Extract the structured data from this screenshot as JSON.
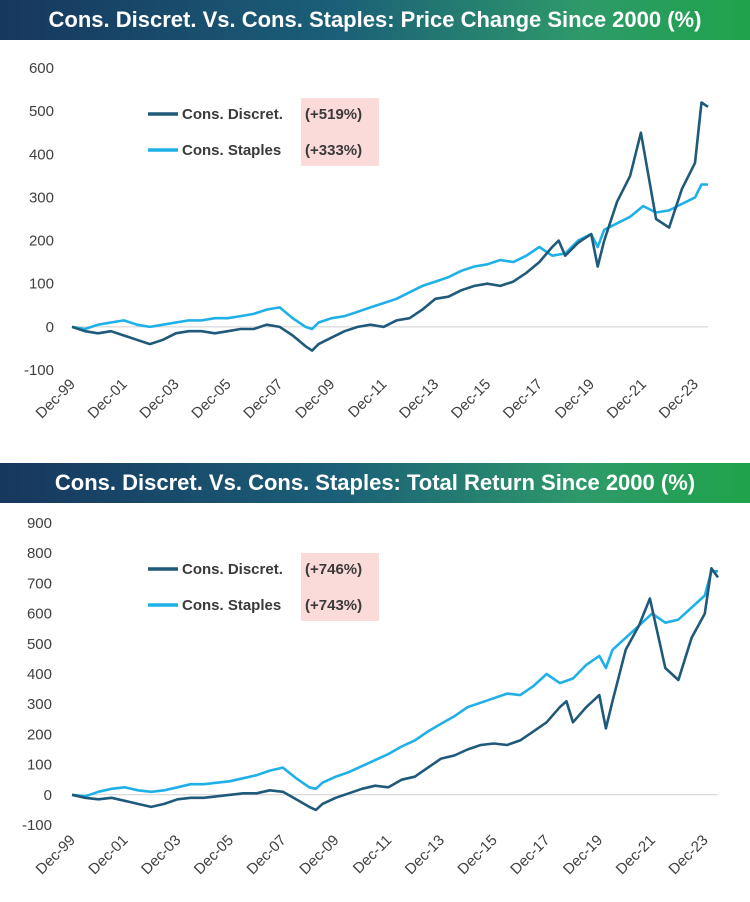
{
  "colors": {
    "discret": "#1f5a7a",
    "staples": "#1fb0e8",
    "highlight": "#fbdada",
    "axis": "#d0d0d0"
  },
  "chart_data": [
    {
      "type": "line",
      "title": "Cons. Discret. Vs. Cons. Staples: Price Change Since 2000 (%)",
      "xlabel": "",
      "ylabel": "",
      "ylim": [
        -100,
        600
      ],
      "yticks": [
        "-100",
        "0",
        "100",
        "200",
        "300",
        "400",
        "500",
        "600"
      ],
      "xticks": [
        "Dec-99",
        "Dec-01",
        "Dec-03",
        "Dec-05",
        "Dec-07",
        "Dec-09",
        "Dec-11",
        "Dec-13",
        "Dec-15",
        "Dec-17",
        "Dec-19",
        "Dec-21",
        "Dec-23"
      ],
      "xlim": [
        "1999-12",
        "2024-06"
      ],
      "grid": false,
      "legend_position": "top-left",
      "series": [
        {
          "name": "Cons. Discret.",
          "label_value": "(+519%)",
          "x": [
            "1999-12",
            "2000-06",
            "2000-12",
            "2001-06",
            "2001-12",
            "2002-06",
            "2002-12",
            "2003-06",
            "2003-12",
            "2004-06",
            "2004-12",
            "2005-06",
            "2005-12",
            "2006-06",
            "2006-12",
            "2007-06",
            "2007-12",
            "2008-06",
            "2008-12",
            "2009-03",
            "2009-06",
            "2009-12",
            "2010-06",
            "2010-12",
            "2011-06",
            "2011-12",
            "2012-06",
            "2012-12",
            "2013-06",
            "2013-12",
            "2014-06",
            "2014-12",
            "2015-06",
            "2015-12",
            "2016-06",
            "2016-12",
            "2017-06",
            "2017-12",
            "2018-06",
            "2018-09",
            "2018-12",
            "2019-06",
            "2019-12",
            "2020-03",
            "2020-06",
            "2020-12",
            "2021-06",
            "2021-11",
            "2022-06",
            "2022-12",
            "2023-06",
            "2023-12",
            "2024-03",
            "2024-06"
          ],
          "values": [
            0,
            -10,
            -15,
            -10,
            -20,
            -30,
            -40,
            -30,
            -15,
            -10,
            -10,
            -15,
            -10,
            -5,
            -5,
            5,
            0,
            -20,
            -45,
            -55,
            -40,
            -25,
            -10,
            0,
            5,
            0,
            15,
            20,
            40,
            65,
            70,
            85,
            95,
            100,
            95,
            105,
            125,
            150,
            185,
            200,
            165,
            195,
            215,
            140,
            200,
            290,
            350,
            450,
            250,
            230,
            320,
            380,
            520,
            510
          ]
        },
        {
          "name": "Cons. Staples",
          "label_value": "(+333%)",
          "x": [
            "1999-12",
            "2000-06",
            "2000-12",
            "2001-06",
            "2001-12",
            "2002-06",
            "2002-12",
            "2003-06",
            "2003-12",
            "2004-06",
            "2004-12",
            "2005-06",
            "2005-12",
            "2006-06",
            "2006-12",
            "2007-06",
            "2007-12",
            "2008-06",
            "2008-12",
            "2009-03",
            "2009-06",
            "2009-12",
            "2010-06",
            "2010-12",
            "2011-06",
            "2011-12",
            "2012-06",
            "2012-12",
            "2013-06",
            "2013-12",
            "2014-06",
            "2014-12",
            "2015-06",
            "2015-12",
            "2016-06",
            "2016-12",
            "2017-06",
            "2017-12",
            "2018-06",
            "2018-12",
            "2019-06",
            "2019-12",
            "2020-03",
            "2020-06",
            "2020-12",
            "2021-06",
            "2021-12",
            "2022-06",
            "2022-12",
            "2023-06",
            "2023-12",
            "2024-03",
            "2024-06"
          ],
          "values": [
            0,
            -5,
            5,
            10,
            15,
            5,
            0,
            5,
            10,
            15,
            15,
            20,
            20,
            25,
            30,
            40,
            45,
            20,
            0,
            -5,
            10,
            20,
            25,
            35,
            45,
            55,
            65,
            80,
            95,
            105,
            115,
            130,
            140,
            145,
            155,
            150,
            165,
            185,
            165,
            170,
            200,
            215,
            185,
            225,
            240,
            255,
            280,
            265,
            270,
            285,
            300,
            330,
            330
          ]
        }
      ]
    },
    {
      "type": "line",
      "title": "Cons. Discret. Vs. Cons. Staples: Total Return Since 2000 (%)",
      "xlabel": "",
      "ylabel": "",
      "ylim": [
        -100,
        900
      ],
      "yticks": [
        "-100",
        "0",
        "100",
        "200",
        "300",
        "400",
        "500",
        "600",
        "700",
        "800",
        "900"
      ],
      "xticks": [
        "Dec-99",
        "Dec-01",
        "Dec-03",
        "Dec-05",
        "Dec-07",
        "Dec-09",
        "Dec-11",
        "Dec-13",
        "Dec-15",
        "Dec-17",
        "Dec-19",
        "Dec-21",
        "Dec-23"
      ],
      "xlim": [
        "1999-12",
        "2024-06"
      ],
      "grid": false,
      "legend_position": "top-left",
      "series": [
        {
          "name": "Cons. Discret.",
          "label_value": "(+746%)",
          "x": [
            "1999-12",
            "2000-06",
            "2000-12",
            "2001-06",
            "2001-12",
            "2002-06",
            "2002-12",
            "2003-06",
            "2003-12",
            "2004-06",
            "2004-12",
            "2005-06",
            "2005-12",
            "2006-06",
            "2006-12",
            "2007-06",
            "2007-12",
            "2008-06",
            "2008-12",
            "2009-03",
            "2009-06",
            "2009-12",
            "2010-06",
            "2010-12",
            "2011-06",
            "2011-12",
            "2012-06",
            "2012-12",
            "2013-06",
            "2013-12",
            "2014-06",
            "2014-12",
            "2015-06",
            "2015-12",
            "2016-06",
            "2016-12",
            "2017-06",
            "2017-12",
            "2018-06",
            "2018-09",
            "2018-12",
            "2019-06",
            "2019-12",
            "2020-03",
            "2020-06",
            "2020-12",
            "2021-06",
            "2021-11",
            "2022-06",
            "2022-12",
            "2023-06",
            "2023-12",
            "2024-03",
            "2024-06"
          ],
          "values": [
            0,
            -10,
            -15,
            -10,
            -20,
            -30,
            -40,
            -30,
            -15,
            -10,
            -10,
            -5,
            0,
            5,
            5,
            15,
            10,
            -15,
            -40,
            -50,
            -30,
            -10,
            5,
            20,
            30,
            25,
            50,
            60,
            90,
            120,
            130,
            150,
            165,
            170,
            165,
            180,
            210,
            240,
            290,
            310,
            240,
            290,
            330,
            220,
            310,
            480,
            560,
            650,
            420,
            380,
            520,
            600,
            750,
            720
          ]
        },
        {
          "name": "Cons. Staples",
          "label_value": "(+743%)",
          "x": [
            "1999-12",
            "2000-06",
            "2000-12",
            "2001-06",
            "2001-12",
            "2002-06",
            "2002-12",
            "2003-06",
            "2003-12",
            "2004-06",
            "2004-12",
            "2005-06",
            "2005-12",
            "2006-06",
            "2006-12",
            "2007-06",
            "2007-12",
            "2008-06",
            "2008-12",
            "2009-03",
            "2009-06",
            "2009-12",
            "2010-06",
            "2010-12",
            "2011-06",
            "2011-12",
            "2012-06",
            "2012-12",
            "2013-06",
            "2013-12",
            "2014-06",
            "2014-12",
            "2015-06",
            "2015-12",
            "2016-06",
            "2016-12",
            "2017-06",
            "2017-12",
            "2018-06",
            "2018-12",
            "2019-06",
            "2019-12",
            "2020-03",
            "2020-06",
            "2020-12",
            "2021-06",
            "2021-12",
            "2022-06",
            "2022-12",
            "2023-06",
            "2023-12",
            "2024-03",
            "2024-06"
          ],
          "values": [
            0,
            -5,
            10,
            20,
            25,
            15,
            10,
            15,
            25,
            35,
            35,
            40,
            45,
            55,
            65,
            80,
            90,
            55,
            25,
            20,
            40,
            60,
            75,
            95,
            115,
            135,
            160,
            180,
            210,
            235,
            260,
            290,
            305,
            320,
            335,
            330,
            360,
            400,
            370,
            385,
            430,
            460,
            420,
            480,
            520,
            560,
            600,
            570,
            580,
            620,
            660,
            740,
            740
          ]
        }
      ]
    }
  ]
}
